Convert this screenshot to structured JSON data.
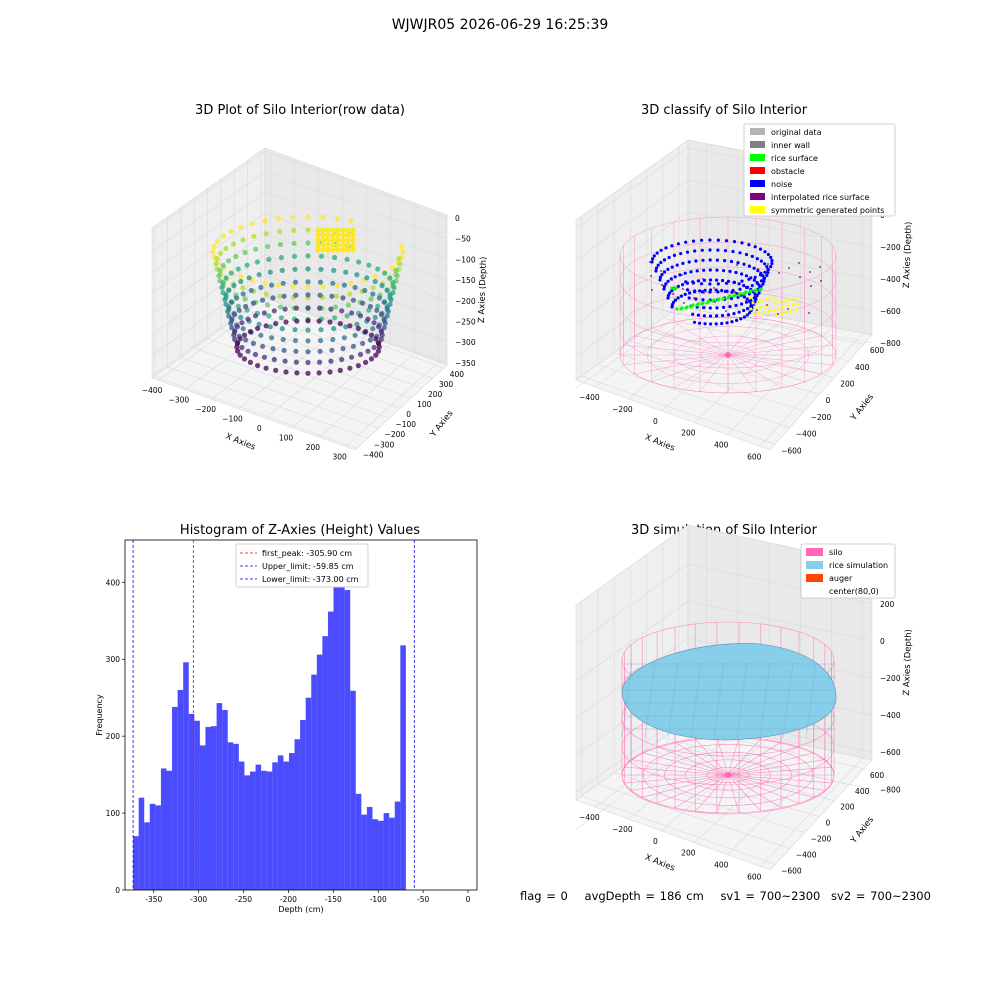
{
  "suptitle": "WJWJR05 2026-06-29 16:25:39",
  "panels": {
    "raw": {
      "title": "3D Plot of Silo Interior(row data)",
      "x_label": "X Axies",
      "y_label": "Y Axies",
      "z_label": "Z Axies (Depth)",
      "x_ticks": [
        "−400",
        "−300",
        "−200",
        "−100",
        "0",
        "100",
        "200",
        "300"
      ],
      "y_ticks": [
        "−400",
        "−300",
        "−200",
        "−100",
        "0",
        "100",
        "200",
        "300",
        "400"
      ],
      "z_ticks": [
        "0",
        "−50",
        "−100",
        "−150",
        "−200",
        "−250",
        "−300",
        "−350"
      ]
    },
    "classify": {
      "title": "3D classify of Silo Interior",
      "x_label": "X Axies",
      "y_label": "Y Axies",
      "z_label": "Z Axies (Depth)",
      "x_ticks": [
        "−400",
        "−200",
        "0",
        "200",
        "400",
        "600"
      ],
      "y_ticks": [
        "−600",
        "−400",
        "−200",
        "0",
        "200",
        "400",
        "600"
      ],
      "z_ticks": [
        "200",
        "0",
        "−200",
        "−400",
        "−600",
        "−800"
      ],
      "legend": [
        {
          "label": "original data",
          "color": "#b4b4b4"
        },
        {
          "label": "inner wall",
          "color": "#808080"
        },
        {
          "label": "rice surface",
          "color": "#00ff00"
        },
        {
          "label": "obstacle",
          "color": "#ff0000"
        },
        {
          "label": "noise",
          "color": "#0000ff"
        },
        {
          "label": "interpolated rice surface",
          "color": "#800080"
        },
        {
          "label": "symmetric generated points",
          "color": "#ffff00"
        }
      ]
    },
    "simulation": {
      "title": "3D simulation of Silo Interior",
      "x_label": "X Axies",
      "y_label": "Y Axies",
      "z_label": "Z Axies (Depth)",
      "x_ticks": [
        "−400",
        "−200",
        "0",
        "200",
        "400",
        "600"
      ],
      "y_ticks": [
        "−600",
        "−400",
        "−200",
        "0",
        "200",
        "400",
        "600"
      ],
      "z_ticks": [
        "200",
        "0",
        "−200",
        "−400",
        "−600",
        "−800"
      ],
      "legend": [
        {
          "label": "silo",
          "color": "#ff69b4"
        },
        {
          "label": "rice simulation",
          "color": "#87ceeb"
        },
        {
          "label": "auger",
          "color": "#ff4500"
        },
        {
          "label": "center(80,0)",
          "color": ""
        }
      ]
    }
  },
  "chart_data": [
    {
      "type": "scatter",
      "title": "3D Plot of Silo Interior(row data)",
      "xlabel": "X Axies",
      "ylabel": "Y Axies",
      "zlabel": "Z Axies (Depth)",
      "xlim": [
        -400,
        300
      ],
      "ylim": [
        -400,
        400
      ],
      "zlim": [
        -380,
        0
      ],
      "colormap": "viridis"
    },
    {
      "type": "scatter",
      "title": "3D classify of Silo Interior",
      "xlabel": "X Axies",
      "ylabel": "Y Axies",
      "zlabel": "Z Axies (Depth)",
      "xlim": [
        -500,
        650
      ],
      "ylim": [
        -600,
        600
      ],
      "zlim": [
        -800,
        200
      ],
      "legend_position": "top-right"
    },
    {
      "type": "bar",
      "title": "Histogram of Z-Axies (Height) Values",
      "xlabel": "Depth (cm)",
      "ylabel": "Frequency",
      "xlim": [
        -382,
        10
      ],
      "ylim": [
        0,
        455
      ],
      "x_ticks": [
        -350,
        -300,
        -250,
        -200,
        -150,
        -100,
        -50,
        0
      ],
      "y_ticks": [
        0,
        100,
        200,
        300,
        400
      ],
      "bin_start": -373.0,
      "bin_width": 6.2,
      "values": [
        70,
        120,
        88,
        112,
        110,
        158,
        155,
        238,
        260,
        296,
        229,
        220,
        188,
        212,
        213,
        243,
        234,
        192,
        190,
        167,
        149,
        154,
        163,
        155,
        154,
        166,
        175,
        167,
        178,
        196,
        221,
        250,
        280,
        306,
        330,
        362,
        428,
        436,
        390,
        259,
        125,
        98,
        108,
        92,
        90,
        100,
        94,
        115,
        318
      ],
      "color": "#0000ff",
      "vlines": [
        {
          "label": "first_peak: -305.90 cm",
          "x": -305.9,
          "color": "#ff0000"
        },
        {
          "label": "Upper_limit: -59.85 cm",
          "x": -59.85,
          "color": "#0000ff"
        },
        {
          "label": "Lower_limit: -373.00 cm",
          "x": -373.0,
          "color": "#0000ff"
        }
      ],
      "legend_position": "upper center"
    },
    {
      "type": "area",
      "title": "3D simulation of Silo Interior",
      "xlabel": "X Axies",
      "ylabel": "Y Axies",
      "zlabel": "Z Axies (Depth)",
      "xlim": [
        -500,
        650
      ],
      "ylim": [
        -600,
        600
      ],
      "zlim": [
        -800,
        200
      ],
      "legend_position": "top-right"
    }
  ],
  "footer": {
    "flag": "flag = 0",
    "avg_depth": "avgDepth = 186 cm",
    "sv1": "sv1 = 700~2300",
    "sv2": "sv2 = 700~2300"
  }
}
